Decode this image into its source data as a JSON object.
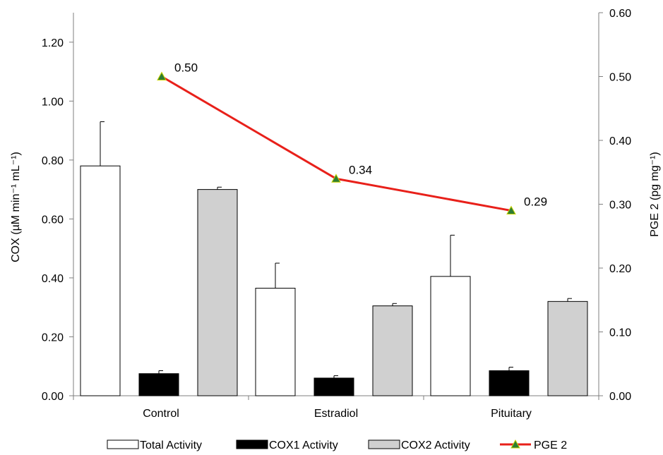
{
  "chart_data": {
    "type": "bar",
    "categories": [
      "Control",
      "Estradiol",
      "Pituitary"
    ],
    "series": [
      {
        "name": "Total Activity",
        "type": "bar",
        "axis": "left",
        "color": "#ffffff",
        "values": [
          0.78,
          0.365,
          0.405
        ],
        "errors": [
          0.15,
          0.085,
          0.14
        ]
      },
      {
        "name": "COX1 Activity",
        "type": "bar",
        "axis": "left",
        "color": "#000000",
        "values": [
          0.075,
          0.06,
          0.085
        ],
        "errors": [
          0.01,
          0.008,
          0.012
        ]
      },
      {
        "name": "COX2 Activity",
        "type": "bar",
        "axis": "left",
        "color": "#d0d0d0",
        "values": [
          0.7,
          0.305,
          0.32
        ],
        "errors": [
          0.008,
          0.008,
          0.01
        ]
      },
      {
        "name": "PGE 2",
        "type": "line",
        "axis": "right",
        "color": "#e8201a",
        "marker_color": "#2e7d32",
        "values": [
          0.5,
          0.34,
          0.29
        ],
        "data_labels": [
          "0.50",
          "0.34",
          "0.29"
        ]
      }
    ],
    "ylabel_left": "COX (µM min⁻¹ mL⁻¹)",
    "ylabel_right": "PGE 2 (pg mg⁻¹)",
    "ylim_left": [
      0,
      1.3
    ],
    "ylim_right": [
      0,
      0.6
    ],
    "yticks_left": [
      "0.00",
      "0.20",
      "0.40",
      "0.60",
      "0.80",
      "1.00",
      "1.20"
    ],
    "yticks_right": [
      "0.00",
      "0.10",
      "0.20",
      "0.30",
      "0.40",
      "0.50",
      "0.60"
    ],
    "grid": false,
    "legend": "bottom"
  }
}
